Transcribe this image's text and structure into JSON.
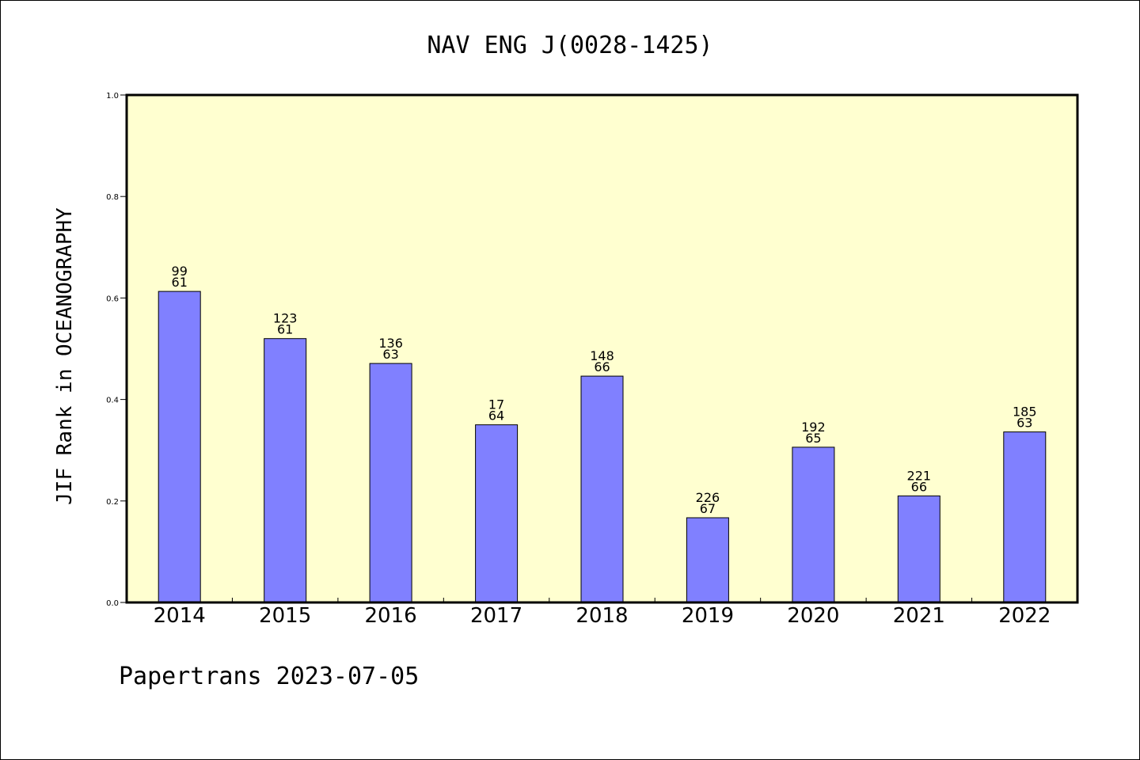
{
  "chart_data": {
    "type": "bar",
    "title": "NAV ENG J(0028-1425)",
    "ylabel": "JIF Rank in OCEANOGRAPHY",
    "xlabel": "",
    "ylim": [
      0,
      1.0
    ],
    "yticks": [
      "0.0",
      "0.2",
      "0.4",
      "0.6",
      "0.8",
      "1.0"
    ],
    "grid": false,
    "plot_background": "#ffffd0",
    "bar_color": "#8080ff",
    "categories": [
      "2014",
      "2015",
      "2016",
      "2017",
      "2018",
      "2019",
      "2020",
      "2021",
      "2022"
    ],
    "values": [
      0.613,
      0.52,
      0.471,
      0.35,
      0.446,
      0.167,
      0.306,
      0.21,
      0.336
    ],
    "labels_top": [
      "99",
      "123",
      "136",
      "17",
      "148",
      "226",
      "192",
      "221",
      "185"
    ],
    "labels_bottom": [
      "61",
      "61",
      "63",
      "64",
      "66",
      "67",
      "65",
      "66",
      "63"
    ]
  },
  "footer": "Papertrans 2023-07-05"
}
